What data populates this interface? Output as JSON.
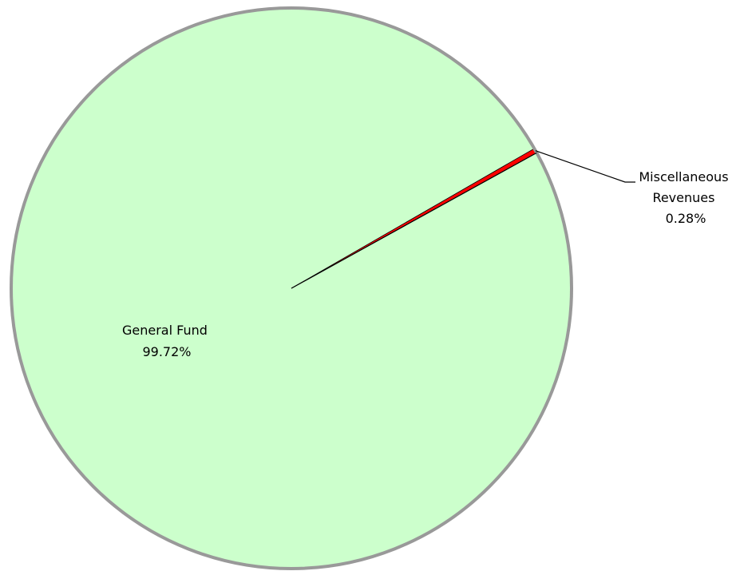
{
  "chart_data": {
    "type": "pie",
    "slices": [
      {
        "name": "General Fund",
        "value": 99.72,
        "label_name": "General Fund",
        "label_value": "99.72%",
        "color": "#ccffcc"
      },
      {
        "name": "Miscellaneous Revenues",
        "value": 0.28,
        "label_name_lines": [
          "Miscellaneous",
          "Revenues"
        ],
        "label_value": "0.28%",
        "color": "#ff0000"
      }
    ],
    "border_color": "#999999",
    "leader_line_color": "#000000",
    "legend": "none"
  }
}
